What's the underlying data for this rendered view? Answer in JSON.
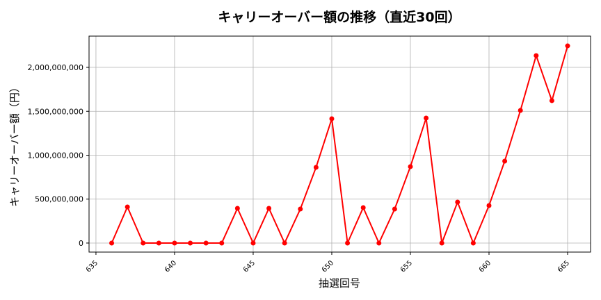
{
  "chart_data": {
    "type": "line",
    "title": "キャリーオーバー額の推移（直近30回）",
    "xlabel": "抽選回号",
    "ylabel": "キャリーオーバー額（円）",
    "xlim": [
      634.56,
      666.46
    ],
    "ylim": [
      -103000000,
      2356000000
    ],
    "xticks": [
      635,
      640,
      645,
      650,
      655,
      660,
      665
    ],
    "yticks": [
      0,
      500000000,
      1000000000,
      1500000000,
      2000000000
    ],
    "ytick_labels": [
      "0",
      "500,000,000",
      "1,000,000,000",
      "1,500,000,000",
      "2,000,000,000"
    ],
    "grid": true,
    "color": "#ff0000",
    "marker": "circle",
    "x": [
      636,
      637,
      638,
      639,
      640,
      641,
      642,
      643,
      644,
      645,
      646,
      647,
      648,
      649,
      650,
      651,
      652,
      653,
      654,
      655,
      656,
      657,
      658,
      659,
      660,
      661,
      662,
      663,
      664,
      665
    ],
    "y": [
      0,
      411000000,
      0,
      0,
      0,
      0,
      0,
      0,
      395000000,
      0,
      395000000,
      0,
      387000000,
      862000000,
      1415000000,
      0,
      403000000,
      0,
      387000000,
      870000000,
      1423000000,
      0,
      466000000,
      0,
      427000000,
      933000000,
      1510000000,
      2134000000,
      1621000000,
      2245000000
    ]
  }
}
